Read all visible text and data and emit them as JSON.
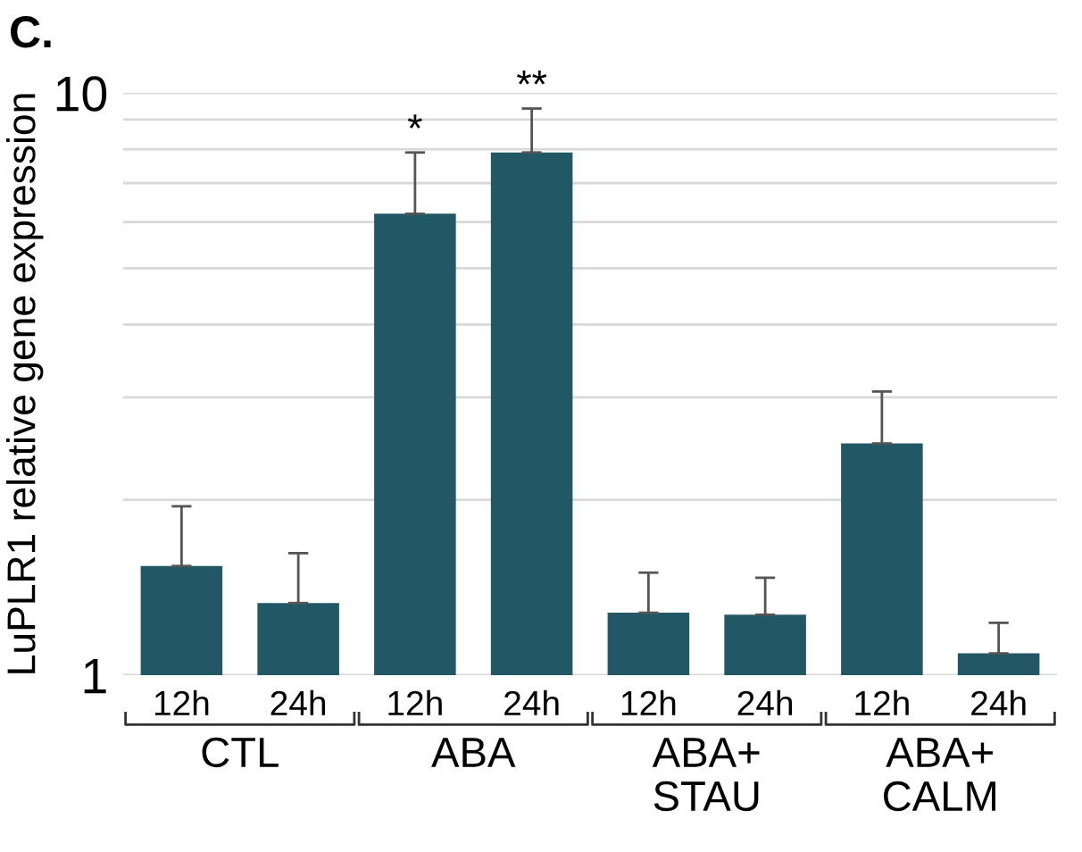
{
  "chart_data": {
    "type": "bar",
    "title": "C.",
    "ylabel": "LuPLR1 relative gene expression",
    "categories": [
      "12h",
      "24h",
      "12h",
      "24h",
      "12h",
      "24h",
      "12h",
      "24h"
    ],
    "values": [
      1.54,
      1.33,
      6.2,
      7.9,
      1.28,
      1.27,
      2.5,
      1.09
    ],
    "errors": [
      0.41,
      0.29,
      1.7,
      1.5,
      0.22,
      0.2,
      0.57,
      0.14
    ],
    "value_labels": [
      null,
      null,
      "*",
      "**",
      null,
      null,
      null,
      null
    ],
    "color": "#225866",
    "log": true,
    "ylim": [
      1,
      10
    ],
    "yticks": [
      1,
      {
        "value": 2,
        "label": null
      },
      {
        "value": 3,
        "label": null
      },
      {
        "value": 4,
        "label": null
      },
      {
        "value": 5,
        "label": null
      },
      {
        "value": 6,
        "label": null
      },
      {
        "value": 7,
        "label": null
      },
      {
        "value": 8,
        "label": null
      },
      {
        "value": 9,
        "label": null
      },
      10
    ],
    "grid": "y",
    "annotations": [
      "CTL",
      "ABA",
      "ABA+\nSTAU",
      "ABA+\nCALM"
    ]
  }
}
